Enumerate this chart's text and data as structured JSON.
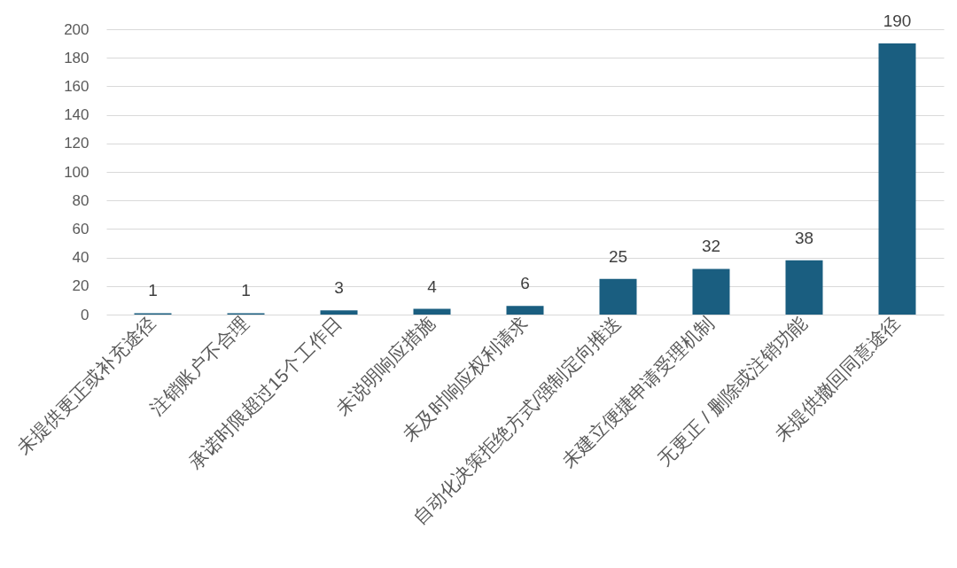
{
  "chart_data": {
    "type": "bar",
    "categories": [
      "未提供更正或补充途径",
      "注销账户不合理",
      "承诺时限超过15个工作日",
      "未说明响应措施",
      "未及时响应权利请求",
      "自动化决策拒绝方式/强制定向推送",
      "未建立便捷申请受理机制",
      "无更正 / 删除或注销功能",
      "未提供撤回同意途径"
    ],
    "values": [
      1,
      1,
      3,
      4,
      6,
      25,
      32,
      38,
      190
    ],
    "color": "#1a5e80",
    "ylim": [
      0,
      200
    ],
    "yticks": [
      0,
      20,
      40,
      60,
      80,
      100,
      120,
      140,
      160,
      180,
      200
    ],
    "grid": "y",
    "data_labels": true
  }
}
